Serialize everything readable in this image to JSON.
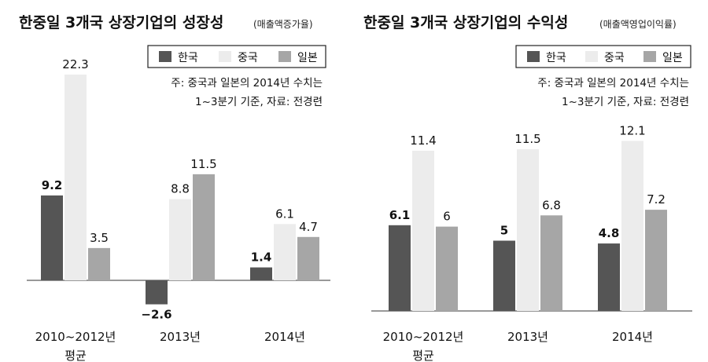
{
  "chart_data": [
    {
      "type": "bar",
      "title": "한중일 3개국 상장기업의 성장성",
      "subtitle": "(매출액증가율)",
      "categories": [
        [
          "2010~2012년",
          "평균"
        ],
        [
          "2013년"
        ],
        [
          "2014년"
        ]
      ],
      "series": [
        {
          "name": "한국",
          "values": [
            9.2,
            -2.6,
            1.4
          ],
          "color": "#555555"
        },
        {
          "name": "중국",
          "values": [
            22.3,
            8.8,
            6.1
          ],
          "color": "#ececec"
        },
        {
          "name": "일본",
          "values": [
            3.5,
            11.5,
            4.7
          ],
          "color": "#a6a6a6"
        }
      ],
      "value_labels": [
        [
          "9.2",
          "22.3",
          "3.5"
        ],
        [
          "−2.6",
          "8.8",
          "11.5"
        ],
        [
          "1.4",
          "6.1",
          "4.7"
        ]
      ],
      "note": [
        "주: 중국과 일본의 2014년 수치는",
        "1~3분기 기준, 자료: 전경련"
      ],
      "ylim": [
        -5.5,
        25
      ],
      "legend_position": "top-right",
      "grid": false
    },
    {
      "type": "bar",
      "title": "한중일 3개국 상장기업의 수익성",
      "subtitle": "(매출액영업이익률)",
      "categories": [
        [
          "2010~2012년",
          "평균"
        ],
        [
          "2013년"
        ],
        [
          "2014년"
        ]
      ],
      "series": [
        {
          "name": "한국",
          "values": [
            6.1,
            5,
            4.8
          ],
          "color": "#555555"
        },
        {
          "name": "중국",
          "values": [
            11.4,
            11.5,
            12.1
          ],
          "color": "#ececec"
        },
        {
          "name": "일본",
          "values": [
            6,
            6.8,
            7.2
          ],
          "color": "#a6a6a6"
        }
      ],
      "value_labels": [
        [
          "6.1",
          "11.4",
          "6"
        ],
        [
          "5",
          "11.5",
          "6.8"
        ],
        [
          "4.8",
          "12.1",
          "7.2"
        ]
      ],
      "note": [
        "주: 중국과 일본의 2014년 수치는",
        "1~3분기 기준, 자료: 전경련"
      ],
      "ylim": [
        0,
        14.5
      ],
      "legend_position": "top-right",
      "grid": false
    }
  ]
}
